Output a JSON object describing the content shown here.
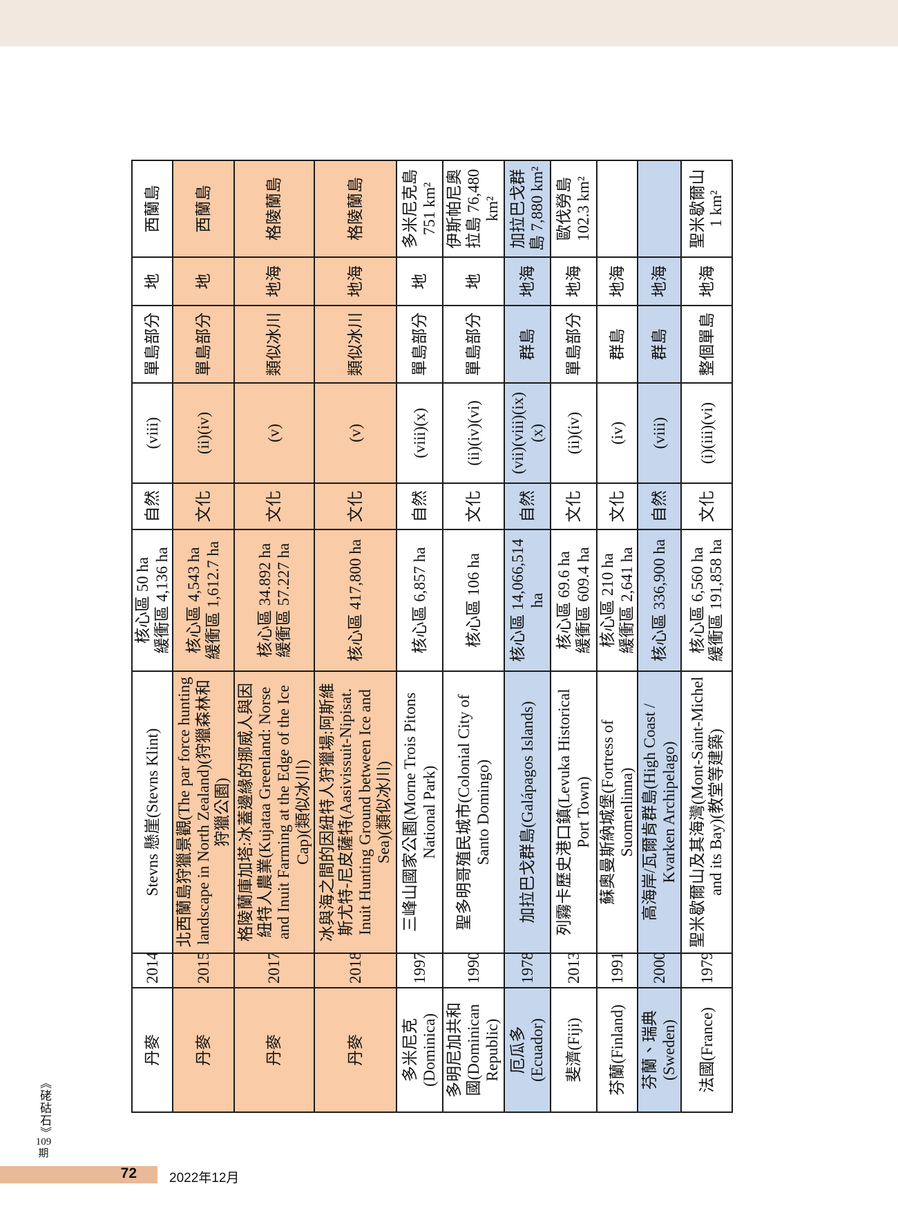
{
  "page": {
    "top_band_color": "#f3e8df",
    "background_color": "#ffffff"
  },
  "footer": {
    "journal_title": "《硓𥑮石》",
    "issue": "109期",
    "page_number": "72",
    "date": "2022年12月",
    "page_bar_color": "#e9ba99"
  },
  "table": {
    "grid_color": "#1c1c1c",
    "highlight_colors": {
      "orange": "#f9cba6",
      "blue": "#c6d6ec"
    },
    "column_keys": [
      "country",
      "year",
      "name",
      "area",
      "category",
      "criteria",
      "island_part",
      "land_sea",
      "island"
    ],
    "rows": [
      {
        "country": "丹麥",
        "year": "2014",
        "name": "Stevns 懸崖(Stevns Klint)",
        "area": "核心區 50 ha\n緩衝區 4,136 ha",
        "category": "自然",
        "criteria": "(viii)",
        "island_part": "單島部分",
        "land_sea": "地",
        "island": "西蘭島",
        "highlight": null
      },
      {
        "country": "丹麥",
        "year": "2015",
        "name": "北西蘭島狩獵景觀(The par force hunting landscape in North Zealand)(狩獵森林和狩獵公園)",
        "area": "核心區 4,543 ha\n緩衝區 1,612.7 ha",
        "category": "文化",
        "criteria": "(ii)(iv)",
        "island_part": "單島部分",
        "land_sea": "地",
        "island": "西蘭島",
        "highlight": "orange"
      },
      {
        "country": "丹麥",
        "year": "2017",
        "name": "格陵蘭庫加塔:冰蓋邊緣的挪威人與因紐特人農業(Kujataa Greenland: Norse and Inuit Farming at the Edge of the Ice Cap)(類似冰川)",
        "area": "核心區 34.892 ha\n緩衝區 57.227 ha",
        "category": "文化",
        "criteria": "(v)",
        "island_part": "類似冰川",
        "land_sea": "地海",
        "island": "格陵蘭島",
        "highlight": "orange"
      },
      {
        "country": "丹麥",
        "year": "2018",
        "name": "冰與海之間的因紐特人狩獵場:阿斯維斯尤特-尼皮薩特(Aasivissuit-Nipisat. Inuit Hunting Ground between Ice and Sea)(類似冰川)",
        "area": "核心區 417,800 ha",
        "category": "文化",
        "criteria": "(v)",
        "island_part": "類似冰川",
        "land_sea": "地海",
        "island": "格陵蘭島",
        "highlight": "orange"
      },
      {
        "country": "多米尼克\n(Dominica)",
        "year": "1997",
        "name": "三峰山國家公園(Morne Trois Pitons National Park)",
        "area": "核心區 6,857 ha",
        "category": "自然",
        "criteria": "(viii)(x)",
        "island_part": "單島部分",
        "land_sea": "地",
        "island": "多米尼克島\n751 km²",
        "highlight": null
      },
      {
        "country": "多明尼加共和\n國(Dominican\nRepublic)",
        "year": "1990",
        "name": "聖多明哥殖民城市(Colonial City of Santo Domingo)",
        "area": "核心區 106 ha",
        "category": "文化",
        "criteria": "(ii)(iv)(vi)",
        "island_part": "單島部分",
        "land_sea": "地",
        "island": "伊斯帕尼奧\n拉島 76,480\nkm²",
        "highlight": null
      },
      {
        "country": "厄瓜多\n(Ecuador)",
        "year": "1978",
        "name": "加拉巴戈群島(Galápagos Islands)",
        "area": "核心區 14,066,514\nha",
        "category": "自然",
        "criteria": "(vii)(viii)(ix)\n(x)",
        "island_part": "群島",
        "land_sea": "地海",
        "island": "加拉巴戈群\n島 7,880 km²",
        "highlight": "blue"
      },
      {
        "country": "斐濟(Fiji)",
        "year": "2013",
        "name": "列霧卡歷史港口鎮(Levuka Historical Port Town)",
        "area": "核心區 69.6 ha\n緩衝區 609.4 ha",
        "category": "文化",
        "criteria": "(ii)(iv)",
        "island_part": "單島部分",
        "land_sea": "地海",
        "island": "歐伐勞島\n102.3 km²",
        "highlight": null
      },
      {
        "country": "芬蘭(Finland)",
        "year": "1991",
        "name": "蘇奧曼斯納城堡(Fortress of Suomenlinna)",
        "area": "核心區 210 ha\n緩衝區 2,641 ha",
        "category": "文化",
        "criteria": "(iv)",
        "island_part": "群島",
        "land_sea": "地海",
        "island": "",
        "highlight": null
      },
      {
        "country": "芬蘭、瑞典\n(Sweden)",
        "year": "2000",
        "name": "高海岸/瓦爾肯群島(High Coast / Kvarken Archipelago)",
        "area": "核心區 336,900 ha",
        "category": "自然",
        "criteria": "(viii)",
        "island_part": "群島",
        "land_sea": "地海",
        "island": "",
        "highlight": "blue"
      },
      {
        "country": "法國(France)",
        "year": "1979",
        "name": "聖米歇爾山及其海灣(Mont-Saint-Michel and its Bay)(教堂等建築)",
        "area": "核心區 6,560 ha\n緩衝區 191,858 ha",
        "category": "文化",
        "criteria": "(i)(iii)(vi)",
        "island_part": "整個單島",
        "land_sea": "地海",
        "island": "聖米歇爾山\n1 km²",
        "highlight": null
      }
    ]
  }
}
